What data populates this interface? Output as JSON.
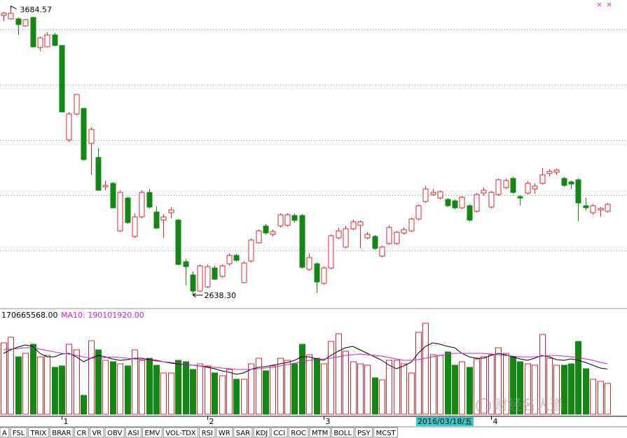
{
  "chart_data": [
    {
      "type": "candlestick",
      "categories": [
        null,
        null,
        null,
        null,
        null,
        null,
        null,
        null,
        "1",
        null,
        null,
        null,
        null,
        null,
        null,
        null,
        null,
        null,
        null,
        null,
        null,
        null,
        null,
        null,
        null,
        null,
        null,
        null,
        "2",
        null,
        null,
        null,
        null,
        null,
        null,
        null,
        null,
        null,
        null,
        null,
        null,
        null,
        null,
        null,
        "3",
        null,
        null,
        null,
        null,
        null,
        null,
        null,
        null,
        null,
        null,
        null,
        null,
        null,
        null,
        null,
        null,
        null,
        null,
        null,
        null,
        null,
        null,
        "4",
        null,
        null,
        null,
        null,
        null,
        null,
        null,
        null,
        null,
        null,
        null,
        null,
        null,
        null,
        null,
        null
      ],
      "open": [
        3650.6,
        3638.0,
        3638.0,
        3612.6,
        3643.0,
        3534.2,
        3536.7,
        3579.7,
        3541.8,
        3200.0,
        3293.6,
        3313.9,
        3187.3,
        3136.7,
        3030.4,
        3043.0,
        2870.9,
        2989.8,
        2850.6,
        2921.5,
        3010.1,
        2939.2,
        2909.9,
        2936.7,
        2909.9,
        2759.5,
        2711.4,
        2653.2,
        2668.3,
        2736.7,
        2706.3,
        2751.9,
        2782.3,
        2683.5,
        2762.0,
        2827.8,
        2888.6,
        2858.2,
        2888.6,
        2891.1,
        2926.6,
        2926.6,
        2731.6,
        2751.9,
        2681.0,
        2736.7,
        2845.6,
        2812.6,
        2878.5,
        2891.1,
        2845.6,
        2850.6,
        2779.7,
        2825.3,
        2825.3,
        2863.3,
        2870.9,
        2913.9,
        2977.2,
        3002.5,
        2989.8,
        2984.8,
        2979.7,
        2954.4,
        2962.0,
        2941.8,
        3007.6,
        2957.0,
        3002.5,
        3027.8,
        3060.7,
        2994.9,
        3007.6,
        3022.8,
        3043.0,
        3078.5,
        3083.5,
        3060.7,
        3048.1,
        3055.7,
        2962.0,
        2936.7,
        2946.8,
        2941.8
      ],
      "high": [
        3663.3,
        3684.57,
        3643.0,
        3638.0,
        3645.5,
        3574.7,
        3589.9,
        3587.3,
        3542.0,
        3301.2,
        3365.0,
        3314.5,
        3245.5,
        3169.6,
        3053.1,
        3048.1,
        3017.7,
        2994.9,
        2934.2,
        3017.7,
        3022.8,
        2959.5,
        2931.6,
        2957.0,
        2914.0,
        2769.6,
        2724.0,
        2749.4,
        2749.4,
        2744.3,
        2749.4,
        2789.9,
        2787.4,
        2759.5,
        2843.0,
        2876.0,
        2896.2,
        2876.0,
        2934.2,
        2934.2,
        2934.2,
        2931.6,
        2789.9,
        2757.0,
        2741.7,
        2858.2,
        2883.5,
        2888.6,
        2911.4,
        2909.0,
        2865.8,
        2855.7,
        2817.7,
        2891.1,
        2870.9,
        2883.5,
        2919.0,
        2967.1,
        3032.9,
        3022.8,
        3017.7,
        2989.8,
        2984.8,
        2997.5,
        2967.1,
        3007.6,
        3027.8,
        3015.2,
        3060.7,
        3060.7,
        3065.8,
        3000.0,
        3050.6,
        3043.0,
        3098.7,
        3093.6,
        3096.2,
        3065.8,
        3053.1,
        3060.7,
        2989.8,
        2967.1,
        2957.0,
        2972.1
      ],
      "low": [
        3630.4,
        3636.0,
        3579.7,
        3610.1,
        3535.0,
        3521.5,
        3535.0,
        3539.2,
        3300.0,
        3192.4,
        3288.6,
        3124.0,
        3073.4,
        3016.0,
        3017.7,
        2952.0,
        2866.0,
        2896.2,
        2845.6,
        2916.4,
        2951.9,
        2878.5,
        2845.6,
        2916.4,
        2746.8,
        2673.4,
        2638.3,
        2650.6,
        2663.3,
        2693.7,
        2701.2,
        2744.3,
        2759.5,
        2681.0,
        2757.0,
        2825.3,
        2858.2,
        2850.6,
        2883.5,
        2886.0,
        2901.2,
        2734.2,
        2726.6,
        2645.5,
        2676.0,
        2731.6,
        2840.5,
        2807.6,
        2873.4,
        2807.6,
        2840.5,
        2802.5,
        2774.7,
        2820.3,
        2820.3,
        2858.2,
        2865.8,
        2908.9,
        2972.1,
        2997.5,
        2984.8,
        2957.0,
        2949.4,
        2949.4,
        2903.8,
        2936.7,
        2997.5,
        2951.9,
        2997.5,
        3022.8,
        3005.1,
        2962.0,
        3002.5,
        3005.1,
        3038.0,
        3068.3,
        3073.4,
        3030.4,
        3022.8,
        2906.3,
        2944.1,
        2929.5,
        2921.5,
        2936.7
      ],
      "close": [
        3658.2,
        3658.2,
        3617.7,
        3635.4,
        3536.7,
        3569.6,
        3579.7,
        3541.8,
        3301.2,
        3293.6,
        3364.5,
        3129.1,
        3237.9,
        3017.7,
        3035.4,
        2954.4,
        3010.1,
        2901.2,
        2921.5,
        3010.1,
        2957.0,
        2881.0,
        2921.5,
        2946.8,
        2749.7,
        2741.7,
        2653.2,
        2744.3,
        2741.7,
        2696.2,
        2744.3,
        2782.3,
        2764.5,
        2754.5,
        2838.0,
        2870.9,
        2863.3,
        2868.3,
        2929.1,
        2929.1,
        2909.0,
        2739.2,
        2774.7,
        2686.1,
        2736.7,
        2853.2,
        2870.9,
        2878.5,
        2903.8,
        2903.8,
        2858.2,
        2807.6,
        2812.6,
        2883.5,
        2865.8,
        2876.0,
        2913.9,
        2962.0,
        3022.8,
        3010.1,
        3012.6,
        2962.0,
        2954.4,
        2992.4,
        2909.9,
        3002.5,
        3017.7,
        3010.1,
        3055.7,
        3053.1,
        3010.1,
        2989.8,
        3043.0,
        3032.9,
        3073.4,
        3086.1,
        3091.1,
        3035.4,
        3040.5,
        2972.1,
        2954.4,
        2962.0,
        2951.9,
        2967.1
      ],
      "up_color": "#e0262c",
      "down_color": "#118811",
      "ylim": [
        2592.4,
        3706.3
      ],
      "yticks": [
        2800,
        3000,
        3200,
        3400,
        3600
      ],
      "grid": true,
      "high_mark": 3684.57,
      "low_mark": {
        "value": 2638.3,
        "label": "2638.30"
      }
    },
    {
      "type": "volume",
      "values": [
        269280000,
        290400000,
        216480000,
        229680000,
        264000000,
        216480000,
        221760000,
        176880000,
        182160000,
        264000000,
        242880000,
        71280000,
        277200000,
        242880000,
        203280000,
        198000000,
        190080000,
        182160000,
        242880000,
        203280000,
        211200000,
        184800000,
        155760000,
        155760000,
        203280000,
        198000000,
        168960000,
        190080000,
        182160000,
        155760000,
        145200000,
        168960000,
        132000000,
        132000000,
        190080000,
        211200000,
        163680000,
        182160000,
        211200000,
        203280000,
        190080000,
        264000000,
        224400000,
        211200000,
        190080000,
        274560000,
        303600000,
        237600000,
        198000000,
        190080000,
        184800000,
        137280000,
        129360000,
        203280000,
        203280000,
        190080000,
        155760000,
        308880000,
        343200000,
        224400000,
        221760000,
        234960000,
        184800000,
        198000000,
        176880000,
        208560000,
        216480000,
        224400000,
        250800000,
        229680000,
        216480000,
        198000000,
        190080000,
        184800000,
        300960000,
        211200000,
        184800000,
        184800000,
        190080000,
        274560000,
        171600000,
        132000000,
        124080000,
        116160000
      ],
      "lines": [
        {
          "color": "#000000",
          "values": [
            229680000,
            242880000,
            253440000,
            261360000,
            256080000,
            229680000,
            216480000,
            216480000,
            227040000,
            229680000,
            216480000,
            198000000,
            211200000,
            221760000,
            216480000,
            208560000,
            203280000,
            205920000,
            211200000,
            211200000,
            205920000,
            203280000,
            198000000,
            192720000,
            190080000,
            187440000,
            184800000,
            182160000,
            176880000,
            171600000,
            163680000,
            158400000,
            150480000,
            155760000,
            168960000,
            176880000,
            179520000,
            184800000,
            190080000,
            195360000,
            203280000,
            216480000,
            216480000,
            208560000,
            203280000,
            221760000,
            237600000,
            250800000,
            256080000,
            242880000,
            229680000,
            216480000,
            203280000,
            184800000,
            171600000,
            182160000,
            195360000,
            229680000,
            256080000,
            269280000,
            264000000,
            256080000,
            250800000,
            229680000,
            216480000,
            211200000,
            211200000,
            221760000,
            229680000,
            224400000,
            216480000,
            208560000,
            203280000,
            211200000,
            221760000,
            216480000,
            205920000,
            203280000,
            208560000,
            203280000,
            195360000,
            184800000,
            174240000,
            170665568
          ]
        },
        {
          "color": "#cc22cc",
          "values": [
            242880000,
            245520000,
            248160000,
            250800000,
            250800000,
            245520000,
            240240000,
            234960000,
            229680000,
            227040000,
            221760000,
            216480000,
            211200000,
            211200000,
            213840000,
            216480000,
            213840000,
            211200000,
            208560000,
            205920000,
            203280000,
            200640000,
            198000000,
            195360000,
            192720000,
            187440000,
            184800000,
            182160000,
            179520000,
            176880000,
            174240000,
            171600000,
            168960000,
            168960000,
            168960000,
            171600000,
            174240000,
            176880000,
            182160000,
            187440000,
            192720000,
            198000000,
            203280000,
            205920000,
            208560000,
            211200000,
            216480000,
            221760000,
            224400000,
            227040000,
            224400000,
            221760000,
            219120000,
            213840000,
            208560000,
            203280000,
            203280000,
            205920000,
            211200000,
            216480000,
            221760000,
            227040000,
            229680000,
            229680000,
            229680000,
            229680000,
            229680000,
            227040000,
            224400000,
            221760000,
            219120000,
            216480000,
            216480000,
            216480000,
            219120000,
            221760000,
            221760000,
            219120000,
            216480000,
            213840000,
            208560000,
            203280000,
            195360000,
            190101920
          ]
        }
      ],
      "up_color": "#e0262c",
      "down_color": "#118811",
      "ylim": [
        0,
        353760000
      ],
      "readouts": [
        "170665568.00",
        "MA10: 190101920.00"
      ]
    }
  ],
  "cursor_label": "2016/03/18/五",
  "watermark": "财经名人道",
  "tabs": [
    "A",
    "FSL",
    "TRIX",
    "BRAR",
    "CR",
    "VR",
    "OBV",
    "ASI",
    "EMV",
    "VOL-TDX",
    "RSI",
    "WR",
    "SAR",
    "KDJ",
    "CCI",
    "ROC",
    "MTM",
    "BOLL",
    "PSY",
    "MCST"
  ]
}
